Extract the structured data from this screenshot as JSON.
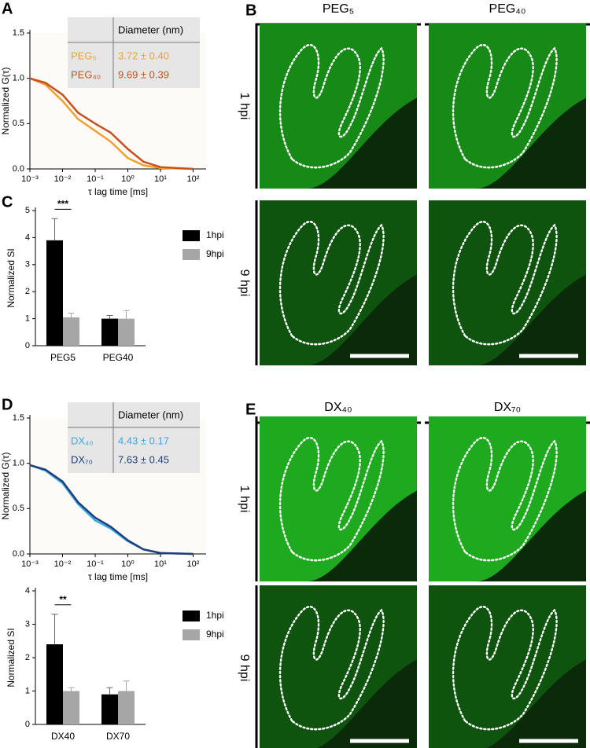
{
  "panel_labels": [
    "A",
    "B",
    "C",
    "D",
    "E"
  ],
  "chart_data": [
    {
      "type": "line",
      "x_label": "τ lag time [ms]",
      "y_label": "Normalized G(τ)",
      "xscale": "log",
      "x": [
        0.001,
        0.003,
        0.01,
        0.03,
        0.1,
        0.3,
        1,
        3,
        10,
        100
      ],
      "series": [
        {
          "name": "PEG₅",
          "color": "#f0a030",
          "diameter": "3.72 ± 0.40",
          "values": [
            1.0,
            0.93,
            0.75,
            0.55,
            0.42,
            0.3,
            0.12,
            0.04,
            0.01,
            0
          ]
        },
        {
          "name": "PEG₄₀",
          "color": "#c8501e",
          "diameter": "9.69 ± 0.39",
          "values": [
            1.0,
            0.95,
            0.82,
            0.62,
            0.5,
            0.4,
            0.22,
            0.08,
            0.02,
            0
          ]
        }
      ],
      "table_header": "Diameter (nm)",
      "xlim": [
        0.001,
        250
      ],
      "xticks": [
        {
          "value": 0.001,
          "label": "10⁻³"
        },
        {
          "value": 0.01,
          "label": "10⁻²"
        },
        {
          "value": 0.1,
          "label": "10⁻¹"
        },
        {
          "value": 1,
          "label": "10⁰"
        },
        {
          "value": 10,
          "label": "10¹"
        },
        {
          "value": 100,
          "label": "10²"
        }
      ],
      "ylim": [
        0,
        1.5
      ],
      "yticks": [
        {
          "value": 0,
          "label": "0.0"
        },
        {
          "value": 0.5,
          "label": "0.5"
        },
        {
          "value": 1,
          "label": "1.0"
        },
        {
          "value": 1.5,
          "label": "1.5"
        }
      ]
    },
    {
      "type": "bar",
      "y_label": "Normalized SI",
      "categories": [
        "PEG5",
        "PEG40"
      ],
      "series": [
        {
          "name": "1hpi",
          "color": "#000000",
          "values": [
            3.9,
            1.0
          ],
          "errors": [
            0.8,
            0.12
          ]
        },
        {
          "name": "9hpi",
          "color": "#a6a6a6",
          "values": [
            1.05,
            1.0
          ],
          "errors": [
            0.15,
            0.3
          ]
        }
      ],
      "annotation": "***",
      "ylim": [
        0,
        5
      ],
      "yticks": [
        0,
        1,
        2,
        3,
        4,
        5
      ]
    },
    {
      "type": "line",
      "x_label": "τ lag time [ms]",
      "y_label": "Normalized G(τ)",
      "xscale": "log",
      "x": [
        0.001,
        0.003,
        0.01,
        0.03,
        0.1,
        0.3,
        1,
        3,
        10,
        100
      ],
      "series": [
        {
          "name": "DX₄₀",
          "color": "#3aa8e0",
          "diameter": "4.43 ± 0.17",
          "values": [
            0.98,
            0.92,
            0.78,
            0.55,
            0.37,
            0.28,
            0.14,
            0.05,
            0.01,
            0
          ]
        },
        {
          "name": "DX₇₀",
          "color": "#1f3f7a",
          "diameter": "7.63 ± 0.45",
          "values": [
            0.98,
            0.93,
            0.8,
            0.57,
            0.4,
            0.3,
            0.15,
            0.05,
            0.01,
            0
          ]
        }
      ],
      "table_header": "Diameter (nm)",
      "xlim": [
        0.001,
        250
      ],
      "xticks": [
        {
          "value": 0.001,
          "label": "10⁻³"
        },
        {
          "value": 0.01,
          "label": "10⁻²"
        },
        {
          "value": 0.1,
          "label": "10⁻¹"
        },
        {
          "value": 1,
          "label": "10⁰"
        },
        {
          "value": 10,
          "label": "10¹"
        },
        {
          "value": 100,
          "label": "10²"
        }
      ],
      "ylim": [
        0,
        1.5
      ],
      "yticks": [
        {
          "value": 0,
          "label": "0.0"
        },
        {
          "value": 0.5,
          "label": "0.5"
        },
        {
          "value": 1,
          "label": "1.0"
        },
        {
          "value": 1.5,
          "label": "1.5"
        }
      ]
    },
    {
      "type": "bar",
      "y_label": "Normalized SI",
      "categories": [
        "DX40",
        "DX70"
      ],
      "series": [
        {
          "name": "1hpi",
          "color": "#000000",
          "values": [
            2.4,
            0.9
          ],
          "errors": [
            0.9,
            0.2
          ]
        },
        {
          "name": "9hpi",
          "color": "#a6a6a6",
          "values": [
            1.0,
            1.0
          ],
          "errors": [
            0.1,
            0.3
          ]
        }
      ],
      "annotation": "**",
      "ylim": [
        0,
        4
      ],
      "yticks": [
        0,
        1,
        2,
        3,
        4
      ]
    }
  ],
  "image_panels": [
    {
      "columns": [
        "PEG₅",
        "PEG₄₀"
      ],
      "rows": [
        "1 hpi",
        "9 hpi"
      ]
    },
    {
      "columns": [
        "DX₄₀",
        "DX₇₀"
      ],
      "rows": [
        "1 hpi",
        "9 hpi"
      ]
    }
  ]
}
